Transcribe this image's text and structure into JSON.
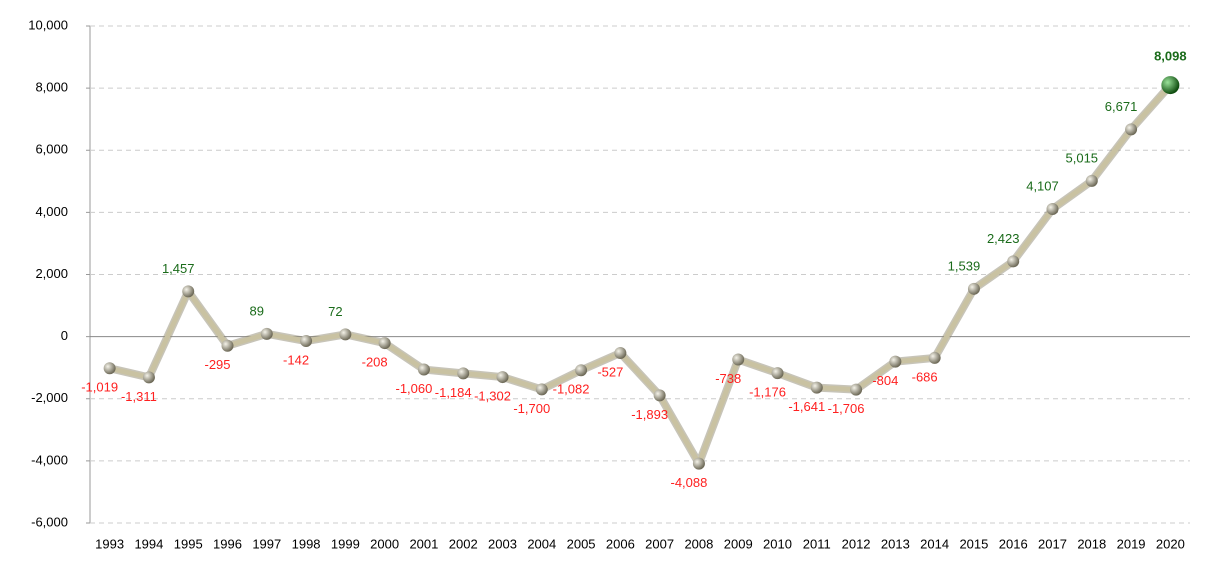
{
  "chart_data": {
    "type": "line",
    "categories": [
      "1993",
      "1994",
      "1995",
      "1996",
      "1997",
      "1998",
      "1999",
      "2000",
      "2001",
      "2002",
      "2003",
      "2004",
      "2005",
      "2006",
      "2007",
      "2008",
      "2009",
      "2010",
      "2011",
      "2012",
      "2013",
      "2014",
      "2015",
      "2016",
      "2017",
      "2018",
      "2019",
      "2020"
    ],
    "values": [
      -1019,
      -1311,
      1457,
      -295,
      89,
      -142,
      72,
      -208,
      -1060,
      -1184,
      -1302,
      -1700,
      -1082,
      -527,
      -1893,
      -4088,
      -738,
      -1176,
      -1641,
      -1706,
      -804,
      -686,
      1539,
      2423,
      4107,
      5015,
      6671,
      8098
    ],
    "value_labels": [
      "-1,019",
      "-1,311",
      "1,457",
      "-295",
      "89",
      "-142",
      "72",
      "-208",
      "-1,060",
      "-1,184",
      "-1,302",
      "-1,700",
      "-1,082",
      "-527",
      "-1,893",
      "-4,088",
      "-738",
      "-1,176",
      "-1,641",
      "-1,706",
      "-804",
      "-686",
      "1,539",
      "2,423",
      "4,107",
      "5,015",
      "6,671",
      "8,098"
    ],
    "color": "#c9c2a2",
    "marker_color": "#8a8670",
    "last_marker_color": "#1f6e1f",
    "positive_label_color": "#1a6b1a",
    "negative_label_color": "#ff2020",
    "ylim": [
      -6000,
      10000
    ],
    "yticks": [
      {
        "value": -6000,
        "label": "-6,000"
      },
      {
        "value": -4000,
        "label": "-4,000"
      },
      {
        "value": -2000,
        "label": "-2,000"
      },
      0,
      {
        "value": 2000,
        "label": "2,000"
      },
      {
        "value": 4000,
        "label": "4,000"
      },
      {
        "value": 6000,
        "label": "6,000"
      },
      {
        "value": 8000,
        "label": "8,000"
      },
      {
        "value": 10000,
        "label": "10,000"
      }
    ],
    "grid": true
  }
}
